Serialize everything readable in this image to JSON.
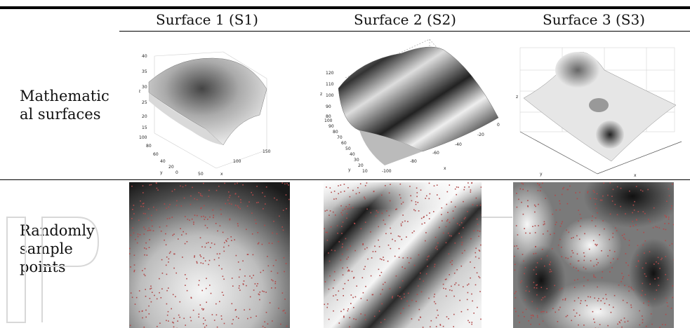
{
  "table": {
    "columns": [
      "Surface 1 (S1)",
      "Surface 2 (S2)",
      "Surface 3 (S3)"
    ],
    "rows": [
      {
        "label_lines": [
          "Mathematic",
          "al surfaces"
        ]
      },
      {
        "label_lines": [
          "Randomly",
          "sample",
          "points"
        ]
      }
    ]
  },
  "plot_labels": {
    "s1": {
      "z_ticks": [
        "40",
        "35",
        "30",
        "25",
        "20",
        "15"
      ],
      "y_ticks": [
        "100",
        "80",
        "60",
        "40",
        "20",
        "0"
      ],
      "x_ticks": [
        "50",
        "100",
        "150"
      ],
      "y_label": "y",
      "x_label": "x",
      "z_label": "z"
    },
    "s2": {
      "z_ticks": [
        "120",
        "110",
        "100",
        "90",
        "80"
      ],
      "y_ticks": [
        "100",
        "90",
        "80",
        "70",
        "60",
        "50",
        "40",
        "30",
        "20",
        "10"
      ],
      "x_ticks": [
        "0",
        "-20",
        "-40",
        "-60",
        "-80",
        "-100"
      ],
      "y_label": "y",
      "x_label": "x",
      "z_label": "z"
    },
    "s3": {
      "y_label": "y",
      "x_label": "x",
      "z_label": "z"
    }
  },
  "colors": {
    "sample_points": "#b04a4a",
    "rules": "#000000"
  }
}
